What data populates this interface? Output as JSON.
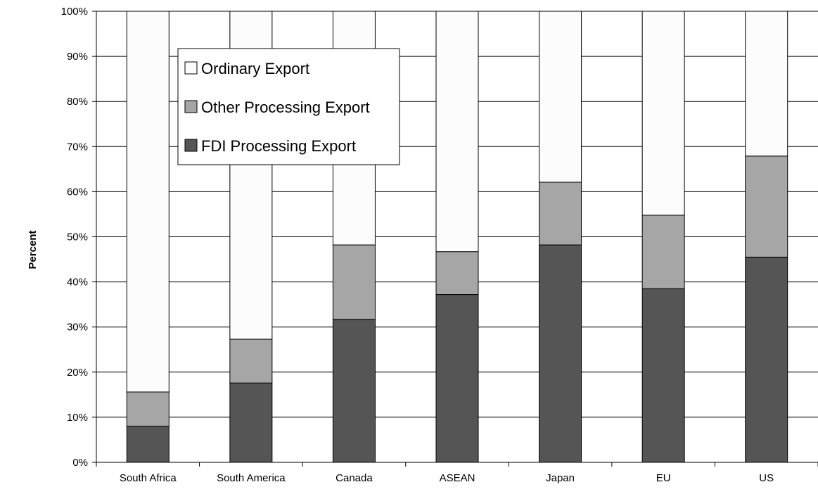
{
  "chart_data": {
    "type": "bar",
    "stacked": true,
    "title": "",
    "xlabel": "",
    "ylabel": "Percent",
    "ylim": [
      0,
      100
    ],
    "y_ticks": [
      "0%",
      "10%",
      "20%",
      "30%",
      "40%",
      "50%",
      "60%",
      "70%",
      "80%",
      "90%",
      "100%"
    ],
    "categories": [
      "South Africa",
      "South America",
      "Canada",
      "ASEAN",
      "Japan",
      "EU",
      "US"
    ],
    "series": [
      {
        "name": "FDI Processing Export",
        "values": [
          8,
          17.6,
          31.7,
          37.2,
          48.2,
          38.5,
          45.5
        ],
        "color": "#555555"
      },
      {
        "name": "Other Processing Export",
        "values": [
          7.6,
          9.7,
          16.5,
          9.5,
          13.9,
          16.3,
          22.4
        ],
        "color": "#a6a6a6"
      },
      {
        "name": "Ordinary Export",
        "values": [
          84.4,
          72.7,
          51.8,
          53.3,
          37.9,
          45.2,
          32.1
        ],
        "color": "#fcfcfc"
      }
    ],
    "legend_order": [
      "Ordinary Export",
      "Other Processing Export",
      "FDI Processing Export"
    ],
    "legend_position": "top-left-inside",
    "grid": true
  }
}
